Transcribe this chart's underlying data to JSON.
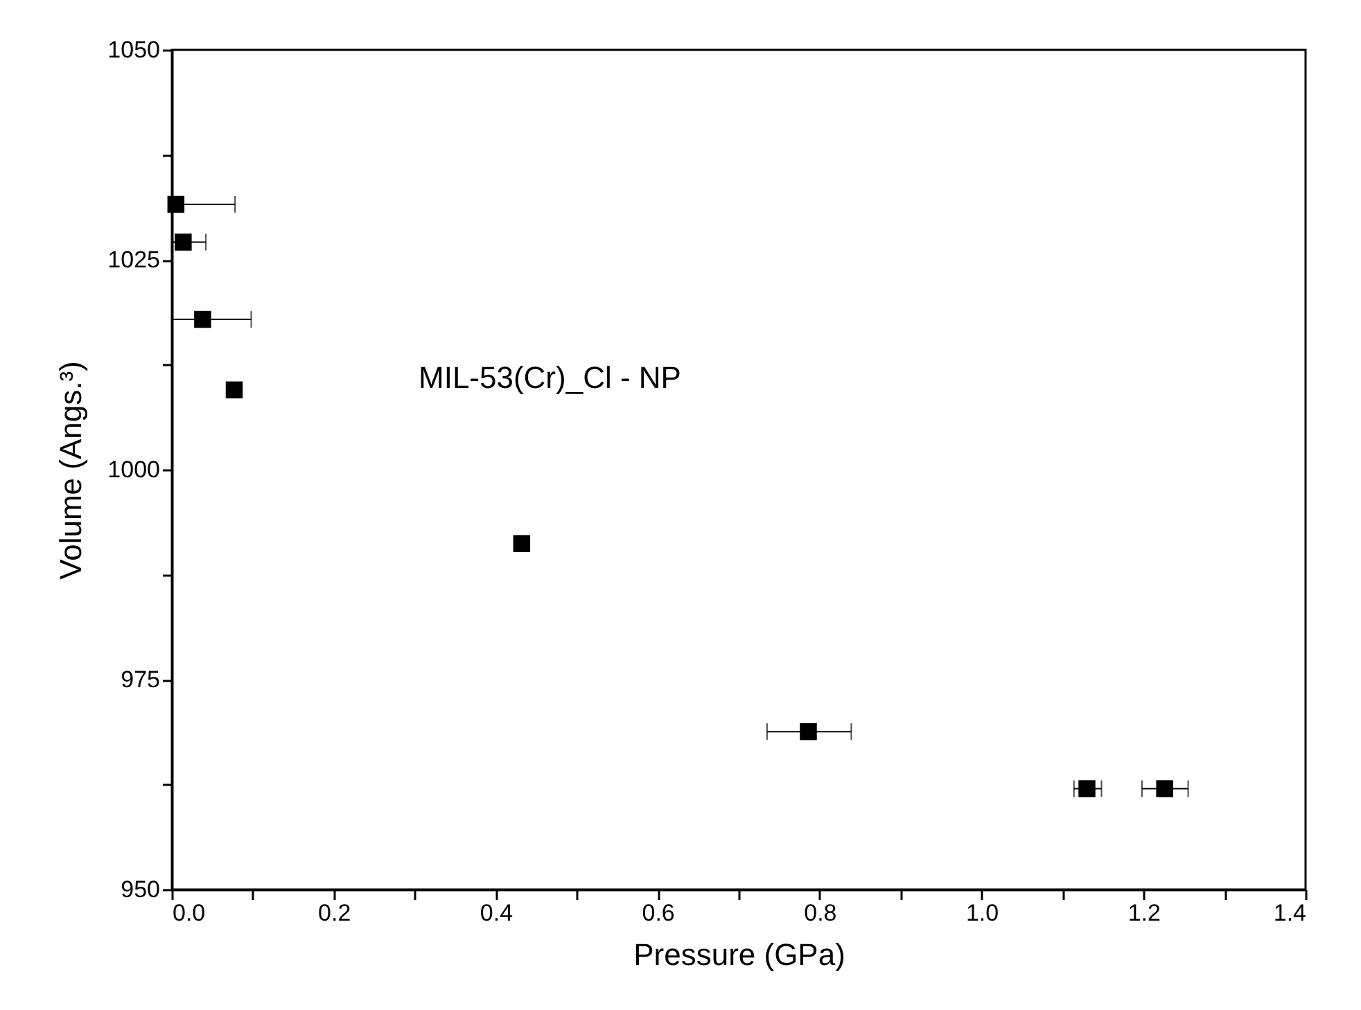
{
  "chart_data": {
    "type": "scatter",
    "xlabel": "Pressure (GPa)",
    "ylabel": "Volume (Angs.³)",
    "annotations": [
      "MIL-53(Cr)_Cl - NP"
    ],
    "x": [
      0.005,
      0.014,
      0.038,
      0.077,
      0.432,
      0.786,
      1.13,
      1.226
    ],
    "values": [
      1031.6,
      1027.1,
      1017.9,
      1009.5,
      991.2,
      968.8,
      962.0,
      962.0
    ],
    "color": "#000000",
    "xerrors": [
      [
        0,
        0.078
      ],
      [
        0,
        0.042
      ],
      [
        0,
        0.098
      ],
      null,
      null,
      [
        0.735,
        0.839
      ],
      [
        1.114,
        1.148
      ],
      [
        1.198,
        1.255
      ]
    ],
    "marker": "square",
    "grid": false,
    "xlim": [
      0,
      1.4
    ],
    "ylim": [
      950,
      1050
    ],
    "xticks": [
      {
        "value": 0,
        "label": "0.0"
      },
      {
        "value": 0.1,
        "label": null
      },
      {
        "value": 0.2,
        "label": "0.2"
      },
      {
        "value": 0.3,
        "label": null
      },
      {
        "value": 0.4,
        "label": "0.4"
      },
      {
        "value": 0.5,
        "label": null
      },
      {
        "value": 0.6,
        "label": "0.6"
      },
      {
        "value": 0.7,
        "label": null
      },
      {
        "value": 0.8,
        "label": "0.8"
      },
      {
        "value": 0.9,
        "label": null
      },
      {
        "value": 1.0,
        "label": "1.0"
      },
      {
        "value": 1.1,
        "label": null
      },
      {
        "value": 1.2,
        "label": "1.2"
      },
      {
        "value": 1.3,
        "label": null
      },
      {
        "value": 1.4,
        "label": "1.4"
      }
    ],
    "yticks": [
      950,
      {
        "value": 962.5,
        "label": null
      },
      975,
      {
        "value": 987.5,
        "label": null
      },
      1000,
      {
        "value": 1012.5,
        "label": null
      },
      1025,
      {
        "value": 1037.5,
        "label": null
      },
      1050
    ]
  }
}
